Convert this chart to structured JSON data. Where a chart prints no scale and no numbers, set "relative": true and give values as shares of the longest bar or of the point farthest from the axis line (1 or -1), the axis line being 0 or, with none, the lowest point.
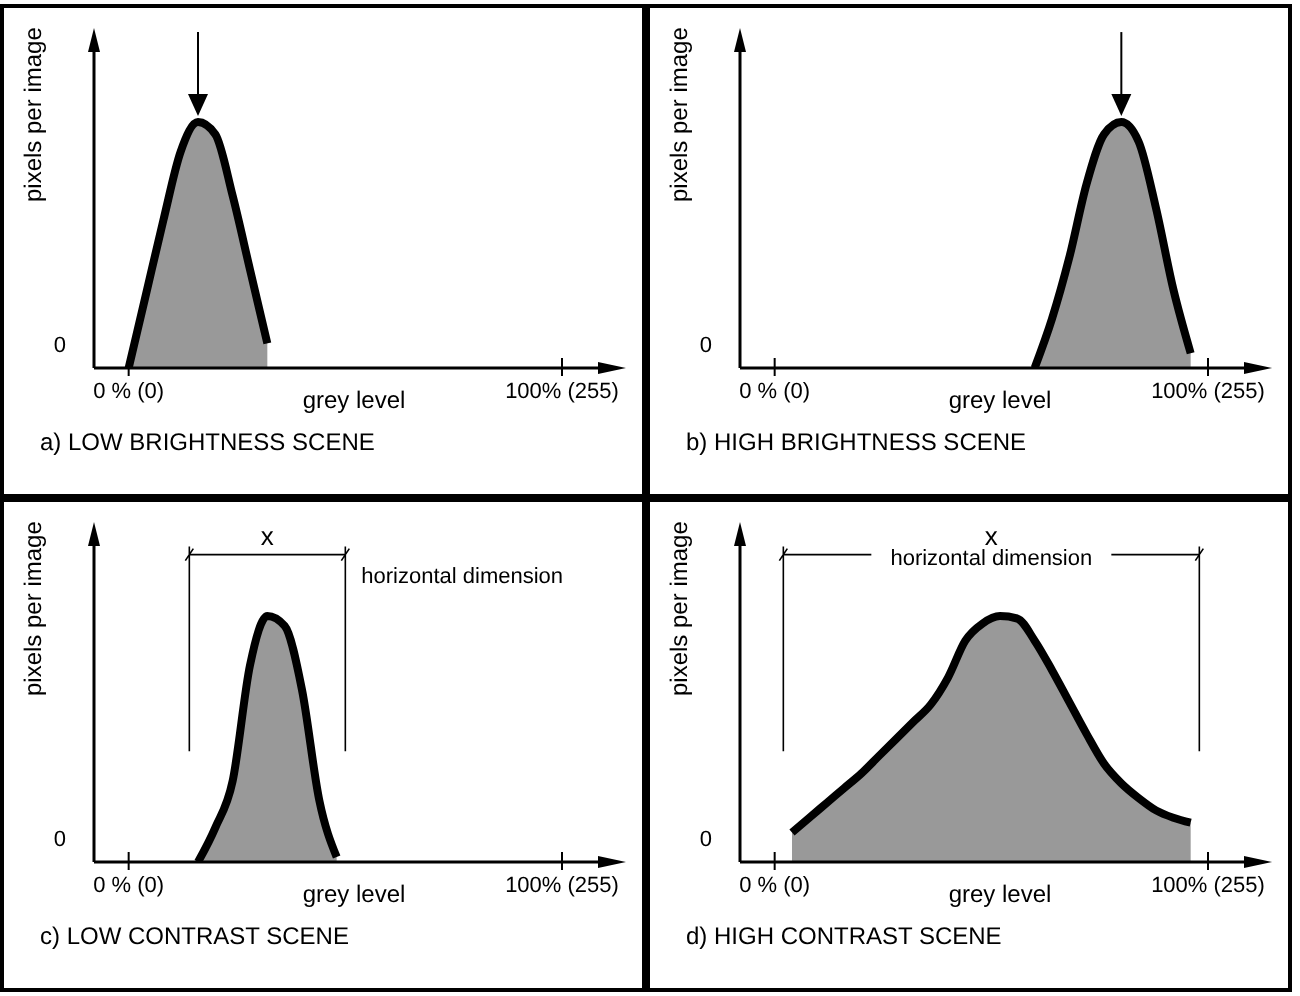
{
  "chart_data": [
    {
      "type": "area",
      "title": "a) LOW BRIGHTNESS SCENE",
      "xlabel": "grey level",
      "ylabel": "pixels per image",
      "relative": true,
      "legend": false,
      "grid": false,
      "categories": [
        null,
        null,
        "0 % (0)",
        null,
        null,
        null,
        null,
        null,
        null,
        null,
        null,
        null,
        null,
        null,
        null,
        null,
        null,
        null,
        null,
        null,
        null,
        null,
        null,
        null,
        null,
        null,
        null,
        "100% (255)",
        null,
        null,
        null
      ],
      "annotations": [
        "0"
      ],
      "series": [
        {
          "color": "#999999",
          "values": [
            null,
            null,
            0,
            0.3,
            0.6,
            0.88,
            1,
            0.95,
            0.7,
            0.4,
            0.1,
            null,
            null,
            null,
            null,
            null,
            null,
            null,
            null,
            null,
            null,
            null,
            null,
            null,
            null,
            null,
            null,
            null,
            null,
            null,
            null
          ]
        }
      ]
    },
    {
      "type": "area",
      "title": "b) HIGH BRIGHTNESS SCENE",
      "xlabel": "grey level",
      "ylabel": "pixels per image",
      "relative": true,
      "legend": false,
      "grid": false,
      "categories": [
        null,
        null,
        "0 % (0)",
        null,
        null,
        null,
        null,
        null,
        null,
        null,
        null,
        null,
        null,
        null,
        null,
        null,
        null,
        null,
        null,
        null,
        null,
        null,
        null,
        null,
        null,
        null,
        null,
        "100% (255)",
        null,
        null,
        null
      ],
      "annotations": [
        "0"
      ],
      "series": [
        {
          "color": "#999999",
          "values": [
            null,
            null,
            null,
            null,
            null,
            null,
            null,
            null,
            null,
            null,
            null,
            null,
            null,
            null,
            null,
            null,
            null,
            0,
            0.2,
            0.45,
            0.75,
            0.95,
            1,
            0.92,
            0.65,
            0.32,
            0.06,
            null,
            null,
            null,
            null
          ]
        }
      ]
    },
    {
      "type": "area",
      "title": "c) LOW CONTRAST SCENE",
      "xlabel": "grey level",
      "ylabel": "pixels per image",
      "relative": true,
      "legend": false,
      "grid": false,
      "categories": [
        null,
        null,
        "0 % (0)",
        null,
        null,
        null,
        null,
        null,
        null,
        null,
        null,
        null,
        null,
        null,
        null,
        null,
        null,
        null,
        null,
        null,
        null,
        null,
        null,
        null,
        null,
        null,
        null,
        "100% (255)",
        null,
        null,
        null
      ],
      "annotations": [
        "0",
        "x",
        "horizontal dimension"
      ],
      "series": [
        {
          "color": "#999999",
          "values": [
            null,
            null,
            null,
            null,
            null,
            null,
            0,
            0.14,
            0.33,
            0.8,
            1,
            0.96,
            0.7,
            0.25,
            0.02,
            null,
            null,
            null,
            null,
            null,
            null,
            null,
            null,
            null,
            null,
            null,
            null,
            null,
            null,
            null,
            null
          ]
        }
      ]
    },
    {
      "type": "area",
      "title": "d) HIGH CONTRAST SCENE",
      "xlabel": "grey level",
      "ylabel": "pixels per image",
      "relative": true,
      "legend": false,
      "grid": false,
      "categories": [
        null,
        null,
        "0 % (0)",
        null,
        null,
        null,
        null,
        null,
        null,
        null,
        null,
        null,
        null,
        null,
        null,
        null,
        null,
        null,
        null,
        null,
        null,
        null,
        null,
        null,
        null,
        null,
        null,
        "100% (255)",
        null,
        null,
        null
      ],
      "annotations": [
        "0",
        "x",
        "horizontal dimension"
      ],
      "series": [
        {
          "color": "#999999",
          "values": [
            null,
            null,
            null,
            0.12,
            0.18,
            0.24,
            0.3,
            0.36,
            0.43,
            0.5,
            0.57,
            0.64,
            0.75,
            0.9,
            0.97,
            1,
            0.99,
            0.9,
            0.78,
            0.65,
            0.52,
            0.4,
            0.32,
            0.26,
            0.21,
            0.18,
            0.16,
            null,
            null,
            null,
            null
          ]
        }
      ]
    }
  ]
}
